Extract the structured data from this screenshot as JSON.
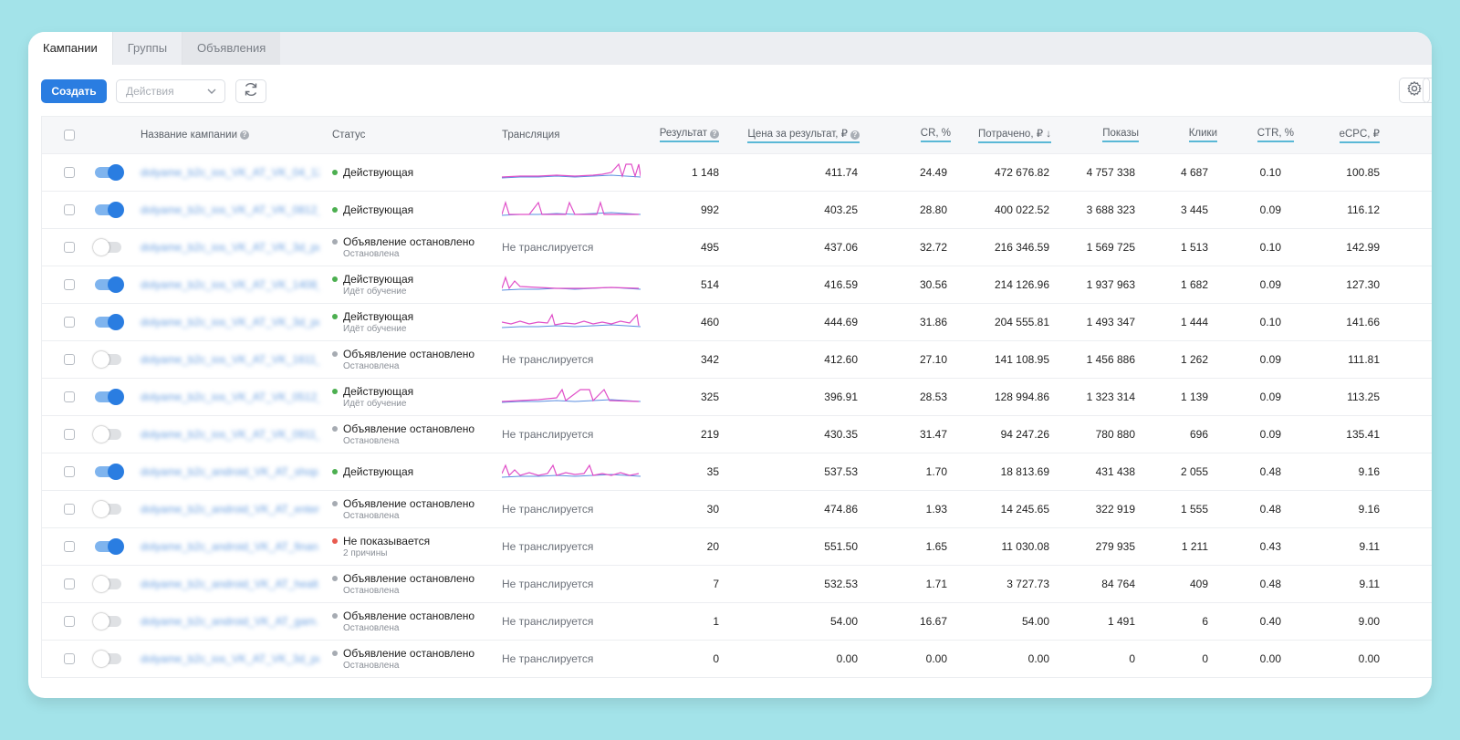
{
  "tabs": [
    {
      "label": "Кампании",
      "active": true
    },
    {
      "label": "Группы",
      "active": false
    },
    {
      "label": "Объявления",
      "active": false
    }
  ],
  "toolbar": {
    "create_label": "Создать",
    "actions_placeholder": "Действия"
  },
  "colors": {
    "accent": "#2a7de1",
    "status_active": "#4caf50",
    "status_stopped": "#a6abb2",
    "status_error": "#e85a4f",
    "sparkline_blue": "#5a8ee0",
    "sparkline_pink": "#e04fc8"
  },
  "columns": {
    "name": "Название кампании",
    "status": "Статус",
    "translation": "Трансляция",
    "result": "Результат",
    "cpa": "Цена за результат, ₽",
    "cr": "CR, %",
    "spent": "Потрачено, ₽ ↓",
    "impressions": "Показы",
    "clicks": "Клики",
    "ctr": "CTR, %",
    "ecpc": "eCPC, ₽"
  },
  "rows": [
    {
      "on": true,
      "name": "dolyame_b2c_ios_VK_AT_VK_04_12_...",
      "dot": "active",
      "status": "Действующая",
      "sub": "",
      "trans": "spark",
      "result": "1 148",
      "cpa": "411.74",
      "cr": "24.49",
      "spent": "472 676.82",
      "impressions": "4 757 338",
      "clicks": "4 687",
      "ctr": "0.10",
      "ecpc": "100.85"
    },
    {
      "on": true,
      "name": "dolyame_b2c_ios_VK_AT_VK_0812_...",
      "dot": "active",
      "status": "Действующая",
      "sub": "",
      "trans": "spark",
      "result": "992",
      "cpa": "403.25",
      "cr": "28.80",
      "spent": "400 022.52",
      "impressions": "3 688 323",
      "clicks": "3 445",
      "ctr": "0.09",
      "ecpc": "116.12"
    },
    {
      "on": false,
      "name": "dolyame_b2c_ios_VK_AT_VK_3d_pu...",
      "dot": "stopped",
      "status": "Объявление остановлено",
      "sub": "Остановлена",
      "trans": "Не транслируется",
      "result": "495",
      "cpa": "437.06",
      "cr": "32.72",
      "spent": "216 346.59",
      "impressions": "1 569 725",
      "clicks": "1 513",
      "ctr": "0.10",
      "ecpc": "142.99"
    },
    {
      "on": true,
      "name": "dolyame_b2c_ios_VK_AT_VK_1408_...",
      "dot": "active",
      "status": "Действующая",
      "sub": "Идёт обучение",
      "trans": "spark",
      "result": "514",
      "cpa": "416.59",
      "cr": "30.56",
      "spent": "214 126.96",
      "impressions": "1 937 963",
      "clicks": "1 682",
      "ctr": "0.09",
      "ecpc": "127.30"
    },
    {
      "on": true,
      "name": "dolyame_b2c_ios_VK_AT_VK_3d_pu...",
      "dot": "active",
      "status": "Действующая",
      "sub": "Идёт обучение",
      "trans": "spark",
      "result": "460",
      "cpa": "444.69",
      "cr": "31.86",
      "spent": "204 555.81",
      "impressions": "1 493 347",
      "clicks": "1 444",
      "ctr": "0.10",
      "ecpc": "141.66"
    },
    {
      "on": false,
      "name": "dolyame_b2c_ios_VK_AT_VK_1611_...",
      "dot": "stopped",
      "status": "Объявление остановлено",
      "sub": "Остановлена",
      "trans": "Не транслируется",
      "result": "342",
      "cpa": "412.60",
      "cr": "27.10",
      "spent": "141 108.95",
      "impressions": "1 456 886",
      "clicks": "1 262",
      "ctr": "0.09",
      "ecpc": "111.81"
    },
    {
      "on": true,
      "name": "dolyame_b2c_ios_VK_AT_VK_0512_...",
      "dot": "active",
      "status": "Действующая",
      "sub": "Идёт обучение",
      "trans": "spark",
      "result": "325",
      "cpa": "396.91",
      "cr": "28.53",
      "spent": "128 994.86",
      "impressions": "1 323 314",
      "clicks": "1 139",
      "ctr": "0.09",
      "ecpc": "113.25"
    },
    {
      "on": false,
      "name": "dolyame_b2c_ios_VK_AT_VK_0911_...",
      "dot": "stopped",
      "status": "Объявление остановлено",
      "sub": "Остановлена",
      "trans": "Не транслируется",
      "result": "219",
      "cpa": "430.35",
      "cr": "31.47",
      "spent": "94 247.26",
      "impressions": "780 880",
      "clicks": "696",
      "ctr": "0.09",
      "ecpc": "135.41"
    },
    {
      "on": true,
      "name": "dolyame_b2c_android_VK_AT_shop...",
      "dot": "active",
      "status": "Действующая",
      "sub": "",
      "trans": "spark",
      "result": "35",
      "cpa": "537.53",
      "cr": "1.70",
      "spent": "18 813.69",
      "impressions": "431 438",
      "clicks": "2 055",
      "ctr": "0.48",
      "ecpc": "9.16"
    },
    {
      "on": false,
      "name": "dolyame_b2c_android_VK_AT_enter...",
      "dot": "stopped",
      "status": "Объявление остановлено",
      "sub": "Остановлена",
      "trans": "Не транслируется",
      "result": "30",
      "cpa": "474.86",
      "cr": "1.93",
      "spent": "14 245.65",
      "impressions": "322 919",
      "clicks": "1 555",
      "ctr": "0.48",
      "ecpc": "9.16"
    },
    {
      "on": true,
      "name": "dolyame_b2c_android_VK_AT_finan...",
      "dot": "error",
      "status": "Не показывается",
      "sub": "2 причины",
      "trans": "Не транслируется",
      "result": "20",
      "cpa": "551.50",
      "cr": "1.65",
      "spent": "11 030.08",
      "impressions": "279 935",
      "clicks": "1 211",
      "ctr": "0.43",
      "ecpc": "9.11"
    },
    {
      "on": false,
      "name": "dolyame_b2c_android_VK_AT_healt...",
      "dot": "stopped",
      "status": "Объявление остановлено",
      "sub": "Остановлена",
      "trans": "Не транслируется",
      "result": "7",
      "cpa": "532.53",
      "cr": "1.71",
      "spent": "3 727.73",
      "impressions": "84 764",
      "clicks": "409",
      "ctr": "0.48",
      "ecpc": "9.11"
    },
    {
      "on": false,
      "name": "dolyame_b2c_android_VK_AT_gam...",
      "dot": "stopped",
      "status": "Объявление остановлено",
      "sub": "Остановлена",
      "trans": "Не транслируется",
      "result": "1",
      "cpa": "54.00",
      "cr": "16.67",
      "spent": "54.00",
      "impressions": "1 491",
      "clicks": "6",
      "ctr": "0.40",
      "ecpc": "9.00"
    },
    {
      "on": false,
      "name": "dolyame_b2c_ios_VK_AT_VK_3d_pu...",
      "dot": "stopped",
      "status": "Объявление остановлено",
      "sub": "Остановлена",
      "trans": "Не транслируется",
      "result": "0",
      "cpa": "0.00",
      "cr": "0.00",
      "spent": "0.00",
      "impressions": "0",
      "clicks": "0",
      "ctr": "0.00",
      "ecpc": "0.00"
    }
  ]
}
